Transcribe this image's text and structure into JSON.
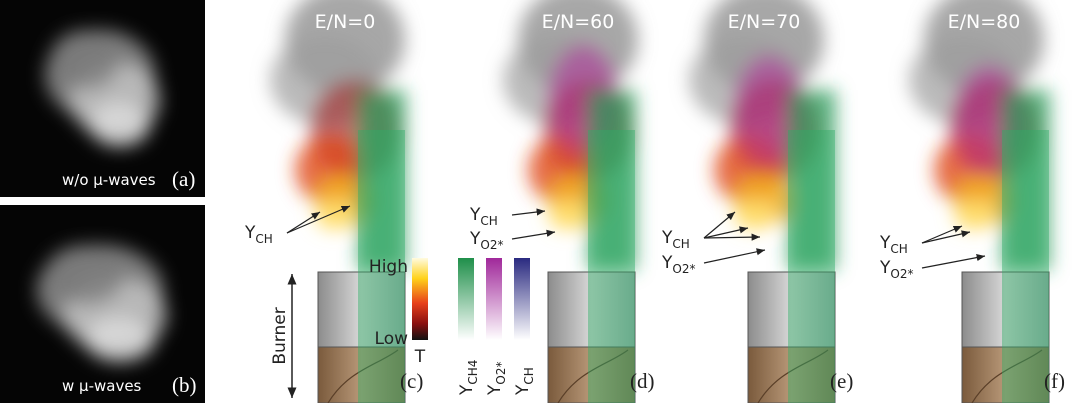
{
  "photos": [
    {
      "caption": "w/o μ-waves",
      "label": "(a)"
    },
    {
      "caption": "w μ-waves",
      "label": "(b)"
    }
  ],
  "simulations": [
    {
      "title": "E/N=0",
      "label": "(c)",
      "annotations": [
        {
          "symbol": "Y",
          "subscript": "CH"
        }
      ]
    },
    {
      "title": "E/N=60",
      "label": "(d)",
      "annotations": [
        {
          "symbol": "Y",
          "subscript": "CH"
        },
        {
          "symbol": "Y",
          "subscript": "O2*"
        }
      ]
    },
    {
      "title": "E/N=70",
      "label": "(e)",
      "annotations": [
        {
          "symbol": "Y",
          "subscript": "CH"
        },
        {
          "symbol": "Y",
          "subscript": "O2*"
        }
      ]
    },
    {
      "title": "E/N=80",
      "label": "(f)",
      "annotations": [
        {
          "symbol": "Y",
          "subscript": "CH"
        },
        {
          "symbol": "Y",
          "subscript": "O2*"
        }
      ]
    }
  ],
  "legend": {
    "high": "High",
    "low": "Low",
    "temperature": "T",
    "species": [
      {
        "symbol": "Y",
        "subscript": "CH4"
      },
      {
        "symbol": "Y",
        "subscript": "O2*"
      },
      {
        "symbol": "Y",
        "subscript": "CH"
      }
    ]
  },
  "burner": "Burner"
}
